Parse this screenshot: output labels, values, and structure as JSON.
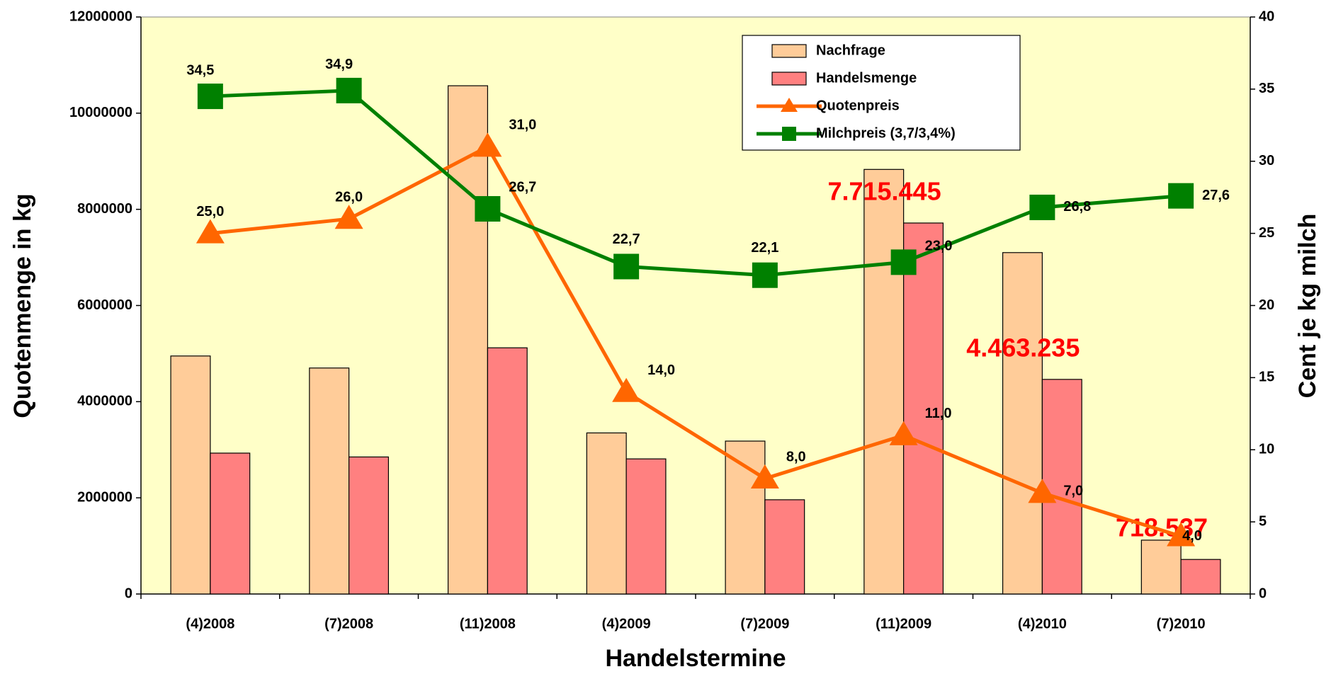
{
  "chart_data": {
    "type": "bar",
    "xlabel": "Handelstermine",
    "ylabel": "Quotenmenge in kg",
    "y2label": "Cent je kg milch",
    "categories": [
      "(4)2008",
      "(7)2008",
      "(11)2008",
      "(4)2009",
      "(7)2009",
      "(11)2009",
      "(4)2010",
      "(7)2010"
    ],
    "ylim": [
      0,
      12000000
    ],
    "yticks": [
      0,
      2000000,
      4000000,
      6000000,
      8000000,
      10000000,
      12000000
    ],
    "y2lim": [
      0,
      40
    ],
    "y2ticks": [
      0,
      5,
      10,
      15,
      20,
      25,
      30,
      35,
      40
    ],
    "plot_background": "#ffffc8",
    "legend": "upper right",
    "series": [
      {
        "name": "Nachfrage",
        "type": "bar",
        "color": "#ffcc99",
        "values": [
          4950000,
          4700000,
          10570000,
          3350000,
          3180000,
          8830000,
          7100000,
          1120000
        ]
      },
      {
        "name": "Handelsmenge",
        "type": "bar",
        "color": "#ff8080",
        "values": [
          2930000,
          2850000,
          5120000,
          2810000,
          1960000,
          7715445,
          4463235,
          718537
        ],
        "value_labels": [
          null,
          null,
          null,
          null,
          null,
          "7.715.445",
          "4.463.235",
          "718.537"
        ]
      },
      {
        "name": "Quotenpreis",
        "type": "line",
        "axis": "y2",
        "marker": "triangle",
        "color": "#ff6600",
        "values": [
          25.0,
          26.0,
          31.0,
          14.0,
          8.0,
          11.0,
          7.0,
          4.0
        ],
        "value_labels": [
          "25,0",
          "26,0",
          "31,0",
          "14,0",
          "8,0",
          "11,0",
          "7,0",
          "4,0"
        ]
      },
      {
        "name": "Milchpreis (3,7/3,4%)",
        "type": "line",
        "axis": "y2",
        "marker": "square",
        "color": "#008000",
        "values": [
          34.5,
          34.9,
          26.7,
          22.7,
          22.1,
          23.0,
          26.8,
          27.6
        ],
        "value_labels": [
          "34,5",
          "34,9",
          "26,7",
          "22,7",
          "22,1",
          "23,0",
          "26,8",
          "27,6"
        ]
      }
    ]
  }
}
